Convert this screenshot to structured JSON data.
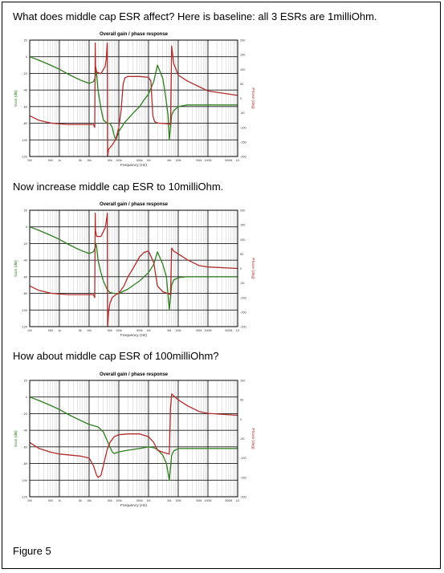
{
  "captions": {
    "baseline": "What does middle cap ESR affect? Here is baseline: all 3 ESRs are 1milliOhm.",
    "esr10": "Now increase middle cap ESR to 10milliOhm.",
    "esr100": "How about middle cap ESR of 100milliOhm?",
    "figure": "Figure 5"
  },
  "colors": {
    "gain": "#2e7d1f",
    "phase": "#b22c2c",
    "grid_major": "#1a1a1a",
    "grid_minor": "#c8c8c8"
  },
  "chart_data": [
    {
      "type": "line",
      "title": "Overall gain / phase response",
      "xlabel": "Frequency (Hz)",
      "ylabel": "Gain (dB)",
      "y2label": "Phase (deg)",
      "x_scale": "log",
      "xlim": [
        100,
        1000000000
      ],
      "ylim": [
        -120,
        20
      ],
      "y2lim": [
        -200,
        200
      ],
      "x_ticks": [
        100,
        500,
        1000,
        5000,
        10000,
        50000,
        100000,
        500000,
        1000000,
        5000000,
        10000000,
        50000000,
        100000000,
        500000000,
        1000000000
      ],
      "x_tick_labels": [
        "100",
        "500",
        "1k",
        "5k",
        "10k",
        "50k",
        "100k",
        "500k",
        "1M",
        "5M",
        "10M",
        "50M",
        "100M",
        "500M",
        "1G"
      ],
      "y_ticks": [
        20,
        0,
        -20,
        -40,
        -60,
        -80,
        -100,
        -120
      ],
      "y_tick_labels": [
        "20",
        "0",
        "-20",
        "-40",
        "-60",
        "-80",
        "-100",
        "-120"
      ],
      "y2_ticks": [
        200,
        150,
        100,
        50,
        0,
        -50,
        -100,
        -150,
        -200
      ],
      "y2_tick_labels": [
        "200",
        "150",
        "100",
        "50",
        "0",
        "-50",
        "-100",
        "-150",
        "-200"
      ],
      "grid": true,
      "series": [
        {
          "name": "Gain",
          "axis": "left",
          "color": "#2e7d1f",
          "x": [
            100,
            200,
            500,
            1000,
            2000,
            5000,
            10000,
            14000,
            16000,
            17000,
            18000,
            20000,
            25000,
            30000,
            40000,
            50000,
            60000,
            70000,
            80000,
            100000,
            150000,
            200000,
            300000,
            500000,
            700000,
            1000000,
            1500000,
            2000000,
            3000000,
            3500000,
            4000000,
            4500000,
            5000000,
            6000000,
            7000000,
            10000000,
            20000000,
            50000000,
            100000000,
            1000000000
          ],
          "y": [
            0,
            -4,
            -10,
            -15,
            -21,
            -28,
            -32,
            -30,
            -25,
            -15,
            -22,
            -40,
            -62,
            -76,
            -80,
            -80,
            -85,
            -95,
            -100,
            -90,
            -80,
            -75,
            -68,
            -60,
            -52,
            -45,
            -30,
            -10,
            -26,
            -40,
            -55,
            -70,
            -100,
            -70,
            -65,
            -60,
            -58,
            -58,
            -58,
            -58
          ]
        },
        {
          "name": "Phase",
          "axis": "right",
          "color": "#b22c2c",
          "x": [
            100,
            200,
            500,
            1000,
            2000,
            5000,
            10000,
            14000,
            15500,
            16000,
            16500,
            18000,
            25000,
            35000,
            38000,
            40000,
            41000,
            42000,
            45000,
            50000,
            60000,
            80000,
            100000,
            120000,
            140000,
            160000,
            200000,
            500000,
            1000000,
            1200000,
            1400000,
            1600000,
            2000000,
            5000000,
            5500000,
            6000000,
            7000000,
            10000000,
            20000000,
            50000000,
            100000000,
            1000000000
          ],
          "y": [
            -60,
            -75,
            -85,
            -88,
            -90,
            -90,
            -90,
            -90,
            -100,
            190,
            110,
            90,
            85,
            110,
            140,
            180,
            190,
            -200,
            -175,
            -170,
            -160,
            -140,
            -100,
            -40,
            50,
            70,
            75,
            75,
            72,
            60,
            -60,
            -80,
            -85,
            -88,
            -90,
            180,
            120,
            80,
            60,
            40,
            25,
            10
          ]
        }
      ]
    },
    {
      "type": "line",
      "title": "Overall gain / phase response",
      "xlabel": "Frequency (Hz)",
      "ylabel": "Gain (dB)",
      "y2label": "Phase (deg)",
      "x_scale": "log",
      "xlim": [
        100,
        1000000000
      ],
      "ylim": [
        -120,
        20
      ],
      "y2lim": [
        -200,
        200
      ],
      "x_ticks": [
        100,
        500,
        1000,
        5000,
        10000,
        50000,
        100000,
        500000,
        1000000,
        5000000,
        10000000,
        50000000,
        100000000,
        500000000,
        1000000000
      ],
      "x_tick_labels": [
        "100",
        "500",
        "1k",
        "5k",
        "10k",
        "50k",
        "100k",
        "500k",
        "1M",
        "5M",
        "10M",
        "50M",
        "100M",
        "500M",
        "1G"
      ],
      "y_ticks": [
        20,
        0,
        -20,
        -40,
        -60,
        -80,
        -100,
        -120
      ],
      "y_tick_labels": [
        "20",
        "0",
        "-20",
        "-40",
        "-60",
        "-80",
        "-100",
        "-120"
      ],
      "y2_ticks": [
        200,
        150,
        100,
        50,
        0,
        -50,
        -100,
        -150,
        -200
      ],
      "y2_tick_labels": [
        "200",
        "150",
        "100",
        "50",
        "0",
        "-50",
        "-100",
        "-150",
        "-200"
      ],
      "grid": true,
      "series": [
        {
          "name": "Gain",
          "axis": "left",
          "color": "#2e7d1f",
          "x": [
            100,
            200,
            500,
            1000,
            2000,
            5000,
            10000,
            14000,
            16000,
            17000,
            18000,
            20000,
            25000,
            30000,
            40000,
            50000,
            70000,
            100000,
            200000,
            500000,
            1000000,
            1500000,
            2000000,
            3000000,
            4000000,
            5000000,
            6000000,
            7000000,
            10000000,
            20000000,
            100000000,
            1000000000
          ],
          "y": [
            0,
            -4,
            -10,
            -15,
            -21,
            -28,
            -32,
            -30,
            -25,
            -20,
            -25,
            -40,
            -55,
            -65,
            -75,
            -79,
            -80,
            -80,
            -75,
            -65,
            -55,
            -45,
            -30,
            -45,
            -60,
            -100,
            -70,
            -64,
            -61,
            -60,
            -60,
            -60
          ]
        },
        {
          "name": "Phase",
          "axis": "right",
          "color": "#b22c2c",
          "x": [
            100,
            200,
            500,
            1000,
            2000,
            5000,
            10000,
            14000,
            15500,
            16000,
            16500,
            18000,
            25000,
            35000,
            40000,
            41000,
            42000,
            45000,
            50000,
            60000,
            80000,
            100000,
            150000,
            200000,
            300000,
            500000,
            700000,
            1000000,
            1500000,
            2000000,
            3000000,
            5000000,
            5500000,
            6000000,
            7000000,
            10000000,
            20000000,
            50000000,
            100000000,
            1000000000
          ],
          "y": [
            -60,
            -75,
            -85,
            -88,
            -90,
            -90,
            -90,
            -90,
            -100,
            190,
            130,
            110,
            110,
            140,
            180,
            190,
            -200,
            -150,
            -120,
            -100,
            -90,
            -85,
            -60,
            -30,
            0,
            40,
            55,
            60,
            20,
            -60,
            -80,
            -88,
            -90,
            70,
            60,
            50,
            30,
            10,
            5,
            0
          ]
        }
      ]
    },
    {
      "type": "line",
      "title": "Overall gain / phase response",
      "xlabel": "Frequency (Hz)",
      "ylabel": "Gain (dB)",
      "y2label": "Phase (deg)",
      "x_scale": "log",
      "xlim": [
        100,
        1000000000
      ],
      "ylim": [
        -120,
        20
      ],
      "y2lim": [
        -200,
        100
      ],
      "x_ticks": [
        100,
        500,
        1000,
        5000,
        10000,
        50000,
        100000,
        500000,
        1000000,
        5000000,
        10000000,
        50000000,
        100000000,
        500000000,
        1000000000
      ],
      "x_tick_labels": [
        "100",
        "500",
        "1k",
        "5k",
        "10k",
        "50k",
        "100k",
        "500k",
        "1M",
        "5M",
        "10M",
        "50M",
        "100M",
        "500M",
        "1G"
      ],
      "y_ticks": [
        20,
        0,
        -20,
        -40,
        -60,
        -80,
        -100,
        -120
      ],
      "y_tick_labels": [
        "20",
        "0",
        "-20",
        "-40",
        "-60",
        "-80",
        "-100",
        "-120"
      ],
      "y2_ticks": [
        100,
        50,
        0,
        -50,
        -100,
        -150,
        -200
      ],
      "y2_tick_labels": [
        "100",
        "50",
        "0",
        "-50",
        "-100",
        "-150",
        "-200"
      ],
      "grid": true,
      "series": [
        {
          "name": "Gain",
          "axis": "left",
          "color": "#2e7d1f",
          "x": [
            100,
            200,
            500,
            1000,
            2000,
            5000,
            10000,
            20000,
            30000,
            40000,
            50000,
            60000,
            70000,
            100000,
            200000,
            500000,
            1000000,
            1500000,
            2000000,
            3000000,
            4000000,
            5000000,
            6000000,
            7000000,
            10000000,
            20000000,
            100000000,
            1000000000
          ],
          "y": [
            0,
            -4,
            -10,
            -15,
            -21,
            -28,
            -33,
            -36,
            -42,
            -52,
            -60,
            -66,
            -68,
            -66,
            -64,
            -62,
            -60,
            -61,
            -63,
            -70,
            -80,
            -100,
            -70,
            -65,
            -62,
            -62,
            -62,
            -62
          ]
        },
        {
          "name": "Phase",
          "axis": "right",
          "color": "#b22c2c",
          "x": [
            100,
            200,
            500,
            1000,
            2000,
            5000,
            10000,
            14000,
            18000,
            20000,
            25000,
            30000,
            40000,
            50000,
            70000,
            100000,
            200000,
            500000,
            1000000,
            1500000,
            2000000,
            3000000,
            4000000,
            5000000,
            5500000,
            6000000,
            7000000,
            10000000,
            20000000,
            50000000,
            100000000,
            1000000000
          ],
          "y": [
            -60,
            -75,
            -85,
            -90,
            -92,
            -95,
            -100,
            -120,
            -145,
            -150,
            -145,
            -120,
            -80,
            -60,
            -45,
            -40,
            -38,
            -38,
            -45,
            -60,
            -80,
            -85,
            -88,
            -90,
            30,
            65,
            60,
            50,
            35,
            20,
            15,
            10
          ]
        }
      ]
    }
  ]
}
